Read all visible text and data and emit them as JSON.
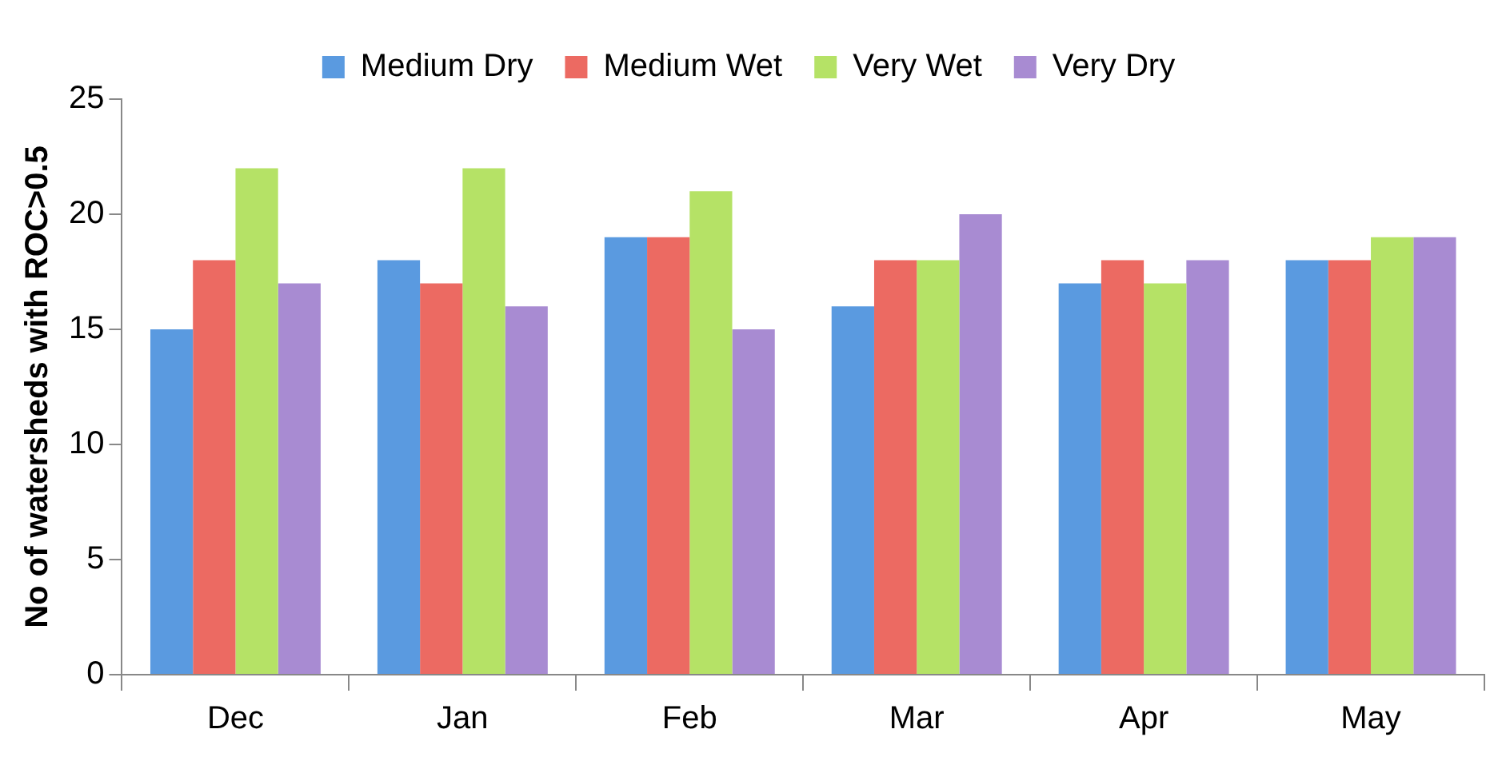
{
  "chart_data": {
    "type": "bar",
    "ylabel": "No of watersheds with ROC>0.5",
    "categories": [
      "Dec",
      "Jan",
      "Feb",
      "Mar",
      "Apr",
      "May"
    ],
    "series": [
      {
        "name": "Medium Dry",
        "color": "#5a9ae0",
        "values": [
          15,
          18,
          19,
          16,
          17,
          18
        ]
      },
      {
        "name": "Medium Wet",
        "color": "#ec6a62",
        "values": [
          18,
          17,
          19,
          18,
          18,
          18
        ]
      },
      {
        "name": "Very Wet",
        "color": "#b5e266",
        "values": [
          22,
          22,
          21,
          18,
          17,
          19
        ]
      },
      {
        "name": "Very Dry",
        "color": "#a88bd2",
        "values": [
          17,
          16,
          15,
          20,
          18,
          19
        ]
      }
    ],
    "ylim": [
      0,
      25
    ],
    "yticks": [
      0,
      5,
      10,
      15,
      20,
      25
    ],
    "grid": false,
    "legend": "top"
  }
}
